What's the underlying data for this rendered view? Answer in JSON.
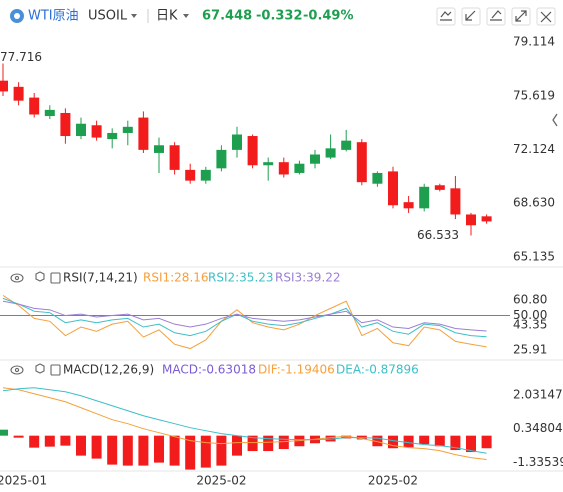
{
  "header": {
    "name": "WTI原油",
    "symbol": "USOIL",
    "period": "日K",
    "price": 67.448,
    "change": -0.332,
    "change_pct": "-0.49%"
  },
  "chart_data": [
    {
      "type": "candlestick",
      "categories": [
        null,
        "2025-01",
        null,
        null,
        null,
        null,
        null,
        null,
        null,
        null,
        null,
        null,
        null,
        null,
        "2025-02",
        null,
        null,
        null,
        null,
        null,
        null,
        null,
        null,
        null,
        null,
        "2025-02",
        null,
        null,
        null,
        null,
        null,
        null
      ],
      "open": [
        76.6,
        76.2,
        75.5,
        74.3,
        74.5,
        73.0,
        73.7,
        72.8,
        73.2,
        74.2,
        71.9,
        72.4,
        70.8,
        70.1,
        70.9,
        72.1,
        73.0,
        71.1,
        71.3,
        70.6,
        71.2,
        71.6,
        72.1,
        72.6,
        69.9,
        70.7,
        68.7,
        68.3,
        69.8,
        69.6,
        67.9,
        67.78
      ],
      "high": [
        77.716,
        76.5,
        75.8,
        75.0,
        74.8,
        74.2,
        74.0,
        73.5,
        74.0,
        74.6,
        72.9,
        72.6,
        71.2,
        71.0,
        72.4,
        73.6,
        73.1,
        71.6,
        71.6,
        71.4,
        72.1,
        73.1,
        73.4,
        72.8,
        70.7,
        71.0,
        69.1,
        69.9,
        69.9,
        70.4,
        68.0,
        67.9
      ],
      "low": [
        75.6,
        75.0,
        74.2,
        74.1,
        72.5,
        72.8,
        72.7,
        72.2,
        72.4,
        71.9,
        70.6,
        70.5,
        69.9,
        69.9,
        70.7,
        71.6,
        70.9,
        70.1,
        70.3,
        70.5,
        70.9,
        71.5,
        72.0,
        69.8,
        69.7,
        68.3,
        68.0,
        68.1,
        69.4,
        67.6,
        66.533,
        67.3
      ],
      "close": [
        75.9,
        75.3,
        74.4,
        74.7,
        73.0,
        73.8,
        72.9,
        73.2,
        73.6,
        72.1,
        72.4,
        70.8,
        70.1,
        70.8,
        72.1,
        73.1,
        71.1,
        71.3,
        70.5,
        71.2,
        71.8,
        72.2,
        72.7,
        70.0,
        70.6,
        68.5,
        68.3,
        69.7,
        69.5,
        67.9,
        67.2,
        67.448
      ],
      "up_color": "#1e9f50",
      "down_color": "#f21c1c",
      "ylim": [
        65.135,
        79.114
      ],
      "yticks": [
        79.114,
        75.619,
        72.124,
        {
          "value": 68.63,
          "label": "68.630"
        },
        65.135
      ],
      "annotations": [
        "77.716",
        "66.533"
      ]
    },
    {
      "type": "line",
      "title": "RSI(7,14,21)",
      "series": [
        {
          "name": "RSI1:28.16",
          "color": "#f5a03c",
          "values": [
            64,
            57,
            48,
            46,
            36,
            42,
            39,
            44,
            46,
            35,
            40,
            30,
            27,
            33,
            46,
            54,
            45,
            42,
            40,
            44,
            50,
            55,
            60,
            36,
            41,
            31,
            29,
            42,
            40,
            32,
            30,
            28.16
          ]
        },
        {
          "name": "RSI2:35.23",
          "color": "#3cc0c8",
          "values": [
            62,
            58,
            53,
            52,
            45,
            47,
            45,
            47,
            48,
            42,
            44,
            38,
            36,
            39,
            46,
            51,
            46,
            44,
            43,
            45,
            48,
            51,
            55,
            42,
            45,
            39,
            37,
            44,
            43,
            38,
            36,
            35.23
          ]
        },
        {
          "name": "RSI3:39.22",
          "color": "#9b7fd4",
          "values": [
            60,
            58,
            55,
            54,
            50,
            51,
            49,
            50,
            51,
            47,
            48,
            44,
            42,
            44,
            48,
            51,
            48,
            47,
            46,
            47,
            49,
            51,
            53,
            45,
            47,
            42,
            41,
            45,
            44,
            41,
            40,
            39.22
          ]
        }
      ],
      "ylim": [
        20.4,
        72.7
      ],
      "yticks": [
        {
          "value": 60.8,
          "label": "60.80"
        },
        {
          "value": 50,
          "label": "50.00"
        },
        43.35,
        25.91
      ],
      "ref_line": 50,
      "ref_color": "#3a8fd6"
    },
    {
      "type": "macd",
      "title": "MACD(12,26,9)",
      "series": [
        {
          "name": "MACD:-0.63018",
          "kind": "bar",
          "color": "#7b5cd6",
          "up_color": "#1e9f50",
          "down_color": "#f21c1c",
          "values": [
            0.3,
            -0.1,
            -0.6,
            -0.55,
            -0.5,
            -1.0,
            -1.15,
            -1.45,
            -1.5,
            -1.5,
            -1.35,
            -1.5,
            -1.7,
            -1.6,
            -1.5,
            -1.0,
            -0.77,
            -0.77,
            -0.67,
            -0.53,
            -0.38,
            -0.29,
            -0.14,
            -0.19,
            -0.53,
            -0.63,
            -0.58,
            -0.43,
            -0.53,
            -0.72,
            -0.82,
            -0.63018
          ]
        },
        {
          "name": "DIF:-1.19406",
          "kind": "line",
          "color": "#f5a03c",
          "values": [
            2.4,
            2.3,
            2.1,
            1.9,
            1.7,
            1.4,
            1.1,
            0.8,
            0.6,
            0.35,
            0.15,
            -0.05,
            -0.25,
            -0.35,
            -0.4,
            -0.35,
            -0.35,
            -0.33,
            -0.3,
            -0.25,
            -0.18,
            -0.1,
            -0.02,
            -0.15,
            -0.3,
            -0.5,
            -0.6,
            -0.65,
            -0.75,
            -0.95,
            -1.1,
            -1.19406
          ]
        },
        {
          "name": "DEA:-0.87896",
          "kind": "line",
          "color": "#3cc0c8",
          "values": [
            2.25,
            2.35,
            2.4,
            2.3,
            2.2,
            2.0,
            1.75,
            1.5,
            1.25,
            1.0,
            0.8,
            0.6,
            0.4,
            0.25,
            0.1,
            0.0,
            -0.1,
            -0.15,
            -0.18,
            -0.2,
            -0.2,
            -0.17,
            -0.1,
            -0.1,
            -0.12,
            -0.25,
            -0.35,
            -0.45,
            -0.5,
            -0.6,
            -0.75,
            -0.87896
          ]
        }
      ],
      "ylim": [
        -1.72,
        3.09
      ],
      "yticks": [
        2.03147,
        0.34804,
        -1.33539
      ]
    }
  ]
}
